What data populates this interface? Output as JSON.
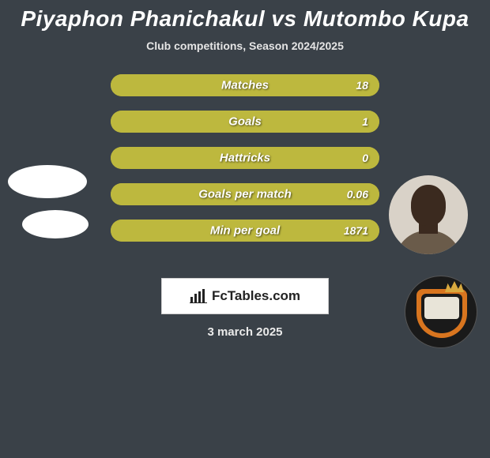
{
  "title": {
    "text": "Piyaphon Phanichakul vs Mutombo Kupa",
    "color": "#ffffff",
    "fontsize": 28
  },
  "subtitle": {
    "text": "Club competitions, Season 2024/2025",
    "fontsize": 14
  },
  "background_color": "#3a4148",
  "bars": {
    "track_color": "#a8a12f",
    "fill_color": "#bdb83e",
    "label_fontsize": 15,
    "value_fontsize": 14,
    "height": 28,
    "gap": 18,
    "items": [
      {
        "label": "Matches",
        "left_pct": 0,
        "right_pct": 100,
        "right_value": "18"
      },
      {
        "label": "Goals",
        "left_pct": 0,
        "right_pct": 100,
        "right_value": "1"
      },
      {
        "label": "Hattricks",
        "left_pct": 0,
        "right_pct": 100,
        "right_value": "0"
      },
      {
        "label": "Goals per match",
        "left_pct": 0,
        "right_pct": 100,
        "right_value": "0.06"
      },
      {
        "label": "Min per goal",
        "left_pct": 0,
        "right_pct": 100,
        "right_value": "1871"
      }
    ]
  },
  "brand": {
    "text": "FcTables.com",
    "icon_name": "bar-chart-icon"
  },
  "date": "3 march 2025",
  "avatars": {
    "left1_color": "#ffffff",
    "left2_color": "#ffffff",
    "right1_bg": "#d9d2c8",
    "right2_bg": "#1a1a1a",
    "right2_accent": "#d8751f",
    "right2_panel": "#e8e4d8",
    "right2_crown": "#d8a93f"
  }
}
